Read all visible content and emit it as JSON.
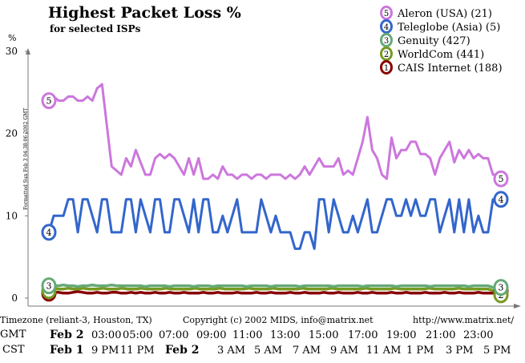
{
  "chart_data": {
    "type": "line",
    "title": "Highest Packet Loss %",
    "subtitle": "for selected ISPs",
    "ylabel": "%",
    "ylim": [
      0,
      30
    ],
    "y_ticks": [
      0,
      10,
      20,
      30
    ],
    "y_tick_labels": [
      "0",
      "10",
      "20",
      "30"
    ],
    "side_note": "Formatted Sun Feb  3 04:38:06 2002 GMT",
    "grid": false,
    "legend_position": "top-right",
    "series": [
      {
        "rank": "5",
        "name": "Aleron (USA) (21)",
        "color": "#cc77dd",
        "start_label": 24,
        "end_label": 14.5,
        "values": [
          24,
          24,
          24.5,
          24,
          24,
          24.5,
          24.5,
          24,
          24,
          24.5,
          24,
          25.5,
          26,
          21,
          16,
          15.5,
          15,
          17,
          16,
          18,
          16.5,
          15,
          15,
          17,
          17.5,
          17,
          17.5,
          17,
          16,
          15,
          17,
          15,
          17,
          14.5,
          14.5,
          15,
          14.5,
          16,
          15,
          15,
          14.5,
          15,
          15,
          14.5,
          15,
          15,
          14.5,
          15,
          15,
          15,
          14.5,
          15,
          14.5,
          15,
          16,
          15,
          16,
          17,
          16,
          16,
          16,
          17,
          15,
          15.5,
          15,
          17,
          19,
          22,
          18,
          17,
          15,
          14.5,
          19.5,
          17,
          18,
          18,
          19,
          19,
          17.5,
          17.5,
          17,
          15,
          17,
          18,
          19,
          16.5,
          18,
          17,
          18,
          17,
          17.5,
          17,
          17,
          15,
          15,
          14.5
        ]
      },
      {
        "rank": "4",
        "name": "Teleglobe (Asia) (5)",
        "color": "#3366cc",
        "start_label": 8,
        "end_label": 12,
        "values": [
          8,
          8,
          10,
          10,
          10,
          12,
          12,
          8,
          12,
          12,
          10,
          8,
          12,
          12,
          8,
          8,
          8,
          12,
          12,
          8,
          12,
          10,
          8,
          12,
          12,
          8,
          8,
          12,
          12,
          10,
          8,
          12,
          8,
          12,
          12,
          8,
          8,
          10,
          8,
          10,
          12,
          8,
          8,
          8,
          8,
          12,
          10,
          8,
          10,
          8,
          8,
          8,
          6,
          6,
          8,
          8,
          6,
          12,
          12,
          8,
          12,
          10,
          8,
          8,
          10,
          8,
          10,
          12,
          8,
          8,
          10,
          12,
          12,
          10,
          10,
          12,
          10,
          12,
          10,
          10,
          12,
          12,
          8,
          10,
          12,
          8,
          12,
          8,
          12,
          8,
          10,
          8,
          8,
          12,
          12,
          12
        ]
      },
      {
        "rank": "3",
        "name": "Genuity (427)",
        "color": "#66aa77",
        "start_label": 1.5,
        "end_label": 1.3,
        "values": [
          1.8,
          1.6,
          1.5,
          1.5,
          1.6,
          1.5,
          1.5,
          1.4,
          1.5,
          1.5,
          1.6,
          1.5,
          1.5,
          1.5,
          1.6,
          1.5,
          1.5,
          1.5,
          1.5,
          1.5,
          1.5,
          1.4,
          1.5,
          1.5,
          1.5,
          1.5,
          1.4,
          1.5,
          1.5,
          1.5,
          1.5,
          1.4,
          1.5,
          1.5,
          1.5,
          1.4,
          1.5,
          1.5,
          1.5,
          1.5,
          1.5,
          1.5,
          1.4,
          1.5,
          1.5,
          1.5,
          1.5,
          1.4,
          1.5,
          1.5,
          1.5,
          1.5,
          1.5,
          1.4,
          1.5,
          1.5,
          1.5,
          1.5,
          1.5,
          1.5,
          1.4,
          1.5,
          1.5,
          1.5,
          1.5,
          1.5,
          1.4,
          1.5,
          1.5,
          1.5,
          1.5,
          1.5,
          1.5,
          1.4,
          1.5,
          1.5,
          1.5,
          1.5,
          1.5,
          1.5,
          1.4,
          1.5,
          1.5,
          1.5,
          1.5,
          1.5,
          1.5,
          1.5,
          1.4,
          1.5,
          1.5,
          1.5,
          1.5,
          1.3,
          1.3,
          1.3
        ]
      },
      {
        "rank": "2",
        "name": "WorldCom (441)",
        "color": "#779922",
        "start_label": 0.9,
        "end_label": 0.4,
        "values": [
          0.9,
          1.1,
          1.2,
          1.1,
          1.1,
          1.2,
          1.1,
          1.1,
          1.2,
          1.1,
          1.1,
          1.1,
          1.2,
          1.1,
          1.1,
          1.1,
          1.2,
          1.1,
          1.1,
          1.1,
          1.2,
          1.1,
          1.1,
          1.1,
          1.1,
          1.2,
          1.1,
          1.1,
          1.1,
          1.1,
          1.1,
          1.2,
          1.1,
          1.1,
          1.1,
          1.1,
          1.2,
          1.1,
          1.1,
          1.1,
          1.1,
          1.1,
          1.2,
          1.1,
          1.1,
          1.1,
          1.1,
          1.2,
          1.1,
          1.1,
          1.1,
          1.1,
          1.1,
          1.2,
          1.1,
          1.1,
          1.1,
          1.1,
          1.1,
          1.2,
          1.1,
          1.1,
          1.1,
          1.1,
          1.1,
          1.1,
          1.2,
          1.1,
          1.1,
          1.1,
          1.1,
          1.1,
          1.2,
          1.1,
          1.1,
          1.1,
          1.1,
          1.1,
          1.1,
          1.2,
          1.1,
          1.1,
          1.1,
          1.1,
          1.1,
          1.2,
          1.1,
          1.1,
          1.1,
          1.1,
          1.1,
          1.1,
          0.9,
          0.6,
          0.4
        ]
      },
      {
        "rank": "1",
        "name": "CAIS Internet (188)",
        "color": "#880000",
        "start_label": 0.6,
        "end_label": 0.9,
        "values": [
          0.6,
          0.6,
          0.7,
          0.7,
          0.6,
          0.6,
          0.7,
          0.8,
          0.7,
          0.6,
          0.6,
          0.7,
          0.6,
          0.6,
          0.7,
          0.7,
          0.6,
          0.6,
          0.7,
          0.6,
          0.7,
          0.6,
          0.6,
          0.7,
          0.6,
          0.6,
          0.7,
          0.6,
          0.6,
          0.7,
          0.6,
          0.6,
          0.6,
          0.7,
          0.6,
          0.6,
          0.7,
          0.6,
          0.6,
          0.6,
          0.7,
          0.6,
          0.6,
          0.6,
          0.7,
          0.6,
          0.6,
          0.7,
          0.6,
          0.6,
          0.6,
          0.7,
          0.6,
          0.6,
          0.7,
          0.6,
          0.6,
          0.6,
          0.7,
          0.6,
          0.6,
          0.7,
          0.6,
          0.6,
          0.6,
          0.7,
          0.6,
          0.6,
          0.7,
          0.6,
          0.6,
          0.6,
          0.7,
          0.6,
          0.6,
          0.7,
          0.6,
          0.6,
          0.6,
          0.7,
          0.6,
          0.6,
          0.6,
          0.7,
          0.6,
          0.6,
          0.7,
          0.6,
          0.6,
          0.6,
          0.7,
          0.6,
          0.6,
          0.6,
          0.9,
          0.9
        ]
      }
    ],
    "footer": {
      "left": "Timezone (reliant-3, Houston, TX)",
      "center": "Copyright (c) 2002 MIDS, info@matrix.net",
      "right": "http://www.matrix.net/"
    },
    "time_axis": {
      "gmt_label": "GMT",
      "cst_label": "CST",
      "gmt_date": "Feb 2",
      "cst_date": "Feb 1",
      "cst_date2": "Feb 2",
      "gmt_ticks": [
        "03:00",
        "05:00",
        "07:00",
        "09:00",
        "11:00",
        "13:00",
        "15:00",
        "17:00",
        "19:00",
        "21:00",
        "23:00"
      ],
      "cst_ticks": [
        "9 PM",
        "11 PM",
        "",
        "3 AM",
        "5 AM",
        "7 AM",
        "9 AM",
        "11 AM",
        "1 PM",
        "3 PM",
        "5 PM"
      ]
    }
  }
}
